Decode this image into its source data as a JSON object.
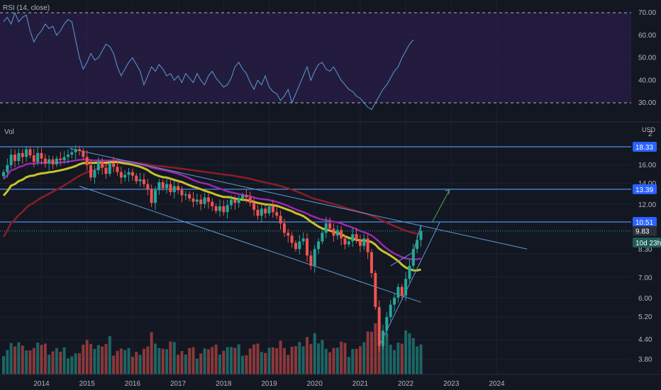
{
  "rsi_pane": {
    "title": "RSI (14, close)",
    "y_ticks": [
      "70.00",
      "60.00",
      "50.00",
      "40.00",
      "30.00"
    ]
  },
  "vol_pane": {
    "title": "Vol"
  },
  "price_pane": {
    "currency": "USD",
    "y_ticks": [
      "2",
      "16.00",
      "14.00",
      "12.00",
      "8.30",
      "7.00",
      "6.00",
      "5.20",
      "4.40",
      "3.80"
    ],
    "badges": [
      {
        "label": "18.33",
        "value": 18.33,
        "color": "#2962ff"
      },
      {
        "label": "13.39",
        "value": 13.39,
        "color": "#2962ff"
      },
      {
        "label": "10.51",
        "value": 10.51,
        "color": "#2962ff"
      },
      {
        "label": "9.83",
        "value": 9.83,
        "color": "#2a2e39"
      },
      {
        "label": "10d 23h",
        "value": 9.0,
        "color": "#1e5c55"
      }
    ]
  },
  "x_axis": {
    "labels": [
      "2014",
      "2015",
      "2016",
      "2017",
      "2018",
      "2019",
      "2020",
      "2021",
      "2022",
      "2023",
      "2024"
    ]
  },
  "colors": {
    "background": "#131722",
    "up": "#26a69a",
    "down": "#ef5350",
    "ma_yellow": "#c9c22b",
    "ma_purple": "#9c27b0",
    "ma_darkred": "#8b1d2a",
    "trendline": "#5b9bd5",
    "rsi_line": "#5b9bd5",
    "rsi_band": "#2a1d48",
    "arrow": "#4caf50"
  },
  "chart_data": {
    "type": "candlestick",
    "timeframe": "monthly",
    "x_start": "2013-03",
    "x_years": [
      2014,
      2015,
      2016,
      2017,
      2018,
      2019,
      2020,
      2021,
      2022,
      2023,
      2024
    ],
    "y_scale": "log",
    "ylim": [
      3.6,
      20
    ],
    "closes": [
      15.2,
      16.0,
      17.3,
      16.5,
      17.5,
      17.0,
      18.0,
      17.2,
      16.4,
      17.5,
      16.8,
      16.2,
      16.7,
      16.1,
      16.8,
      16.6,
      17.0,
      17.3,
      17.6,
      18.0,
      17.8,
      17.0,
      16.0,
      14.6,
      15.4,
      16.4,
      15.7,
      15.0,
      16.2,
      15.8,
      15.2,
      14.6,
      14.9,
      15.2,
      14.8,
      14.2,
      14.4,
      13.9,
      13.4,
      12.1,
      13.3,
      14.1,
      13.5,
      13.9,
      13.1,
      13.7,
      13.3,
      12.8,
      12.9,
      12.5,
      12.2,
      12.4,
      12.0,
      12.6,
      12.2,
      11.8,
      11.4,
      11.8,
      11.3,
      11.9,
      12.4,
      12.1,
      12.5,
      12.8,
      12.6,
      12.1,
      11.5,
      11.0,
      11.6,
      11.2,
      11.8,
      11.3,
      11.0,
      10.4,
      9.7,
      9.5,
      9.0,
      8.6,
      9.1,
      9.3,
      8.2,
      7.6,
      8.6,
      9.1,
      9.7,
      10.4,
      10.0,
      9.5,
      9.9,
      9.3,
      8.9,
      9.1,
      9.6,
      9.2,
      8.8,
      9.3,
      8.4,
      7.2,
      5.6,
      4.2,
      4.7,
      5.2,
      5.7,
      6.0,
      6.5,
      6.1,
      6.9,
      7.6,
      8.6,
      9.2,
      9.83
    ],
    "rsi": [
      66,
      68,
      65,
      70,
      66,
      68,
      69,
      62,
      57,
      60,
      62,
      65,
      63,
      64,
      60,
      62,
      65,
      67,
      66,
      58,
      50,
      45,
      48,
      52,
      49,
      50,
      53,
      56,
      55,
      52,
      46,
      42,
      45,
      48,
      50,
      47,
      44,
      38,
      42,
      46,
      44,
      47,
      45,
      42,
      43,
      40,
      42,
      39,
      43,
      41,
      39,
      43,
      40,
      38,
      42,
      44,
      41,
      39,
      37,
      38,
      41,
      46,
      48,
      45,
      43,
      39,
      36,
      40,
      38,
      42,
      37,
      35,
      34,
      31,
      33,
      36,
      30,
      34,
      38,
      42,
      46,
      40,
      44,
      47,
      48,
      45,
      44,
      46,
      43,
      40,
      38,
      36,
      35,
      33,
      32,
      30,
      28,
      27,
      30,
      33,
      36,
      38,
      41,
      44,
      46,
      50,
      53,
      56,
      58
    ],
    "horizontal_levels": [
      18.33,
      13.39,
      10.51
    ],
    "current_price": 9.83,
    "rsi_levels": [
      70,
      30
    ]
  }
}
